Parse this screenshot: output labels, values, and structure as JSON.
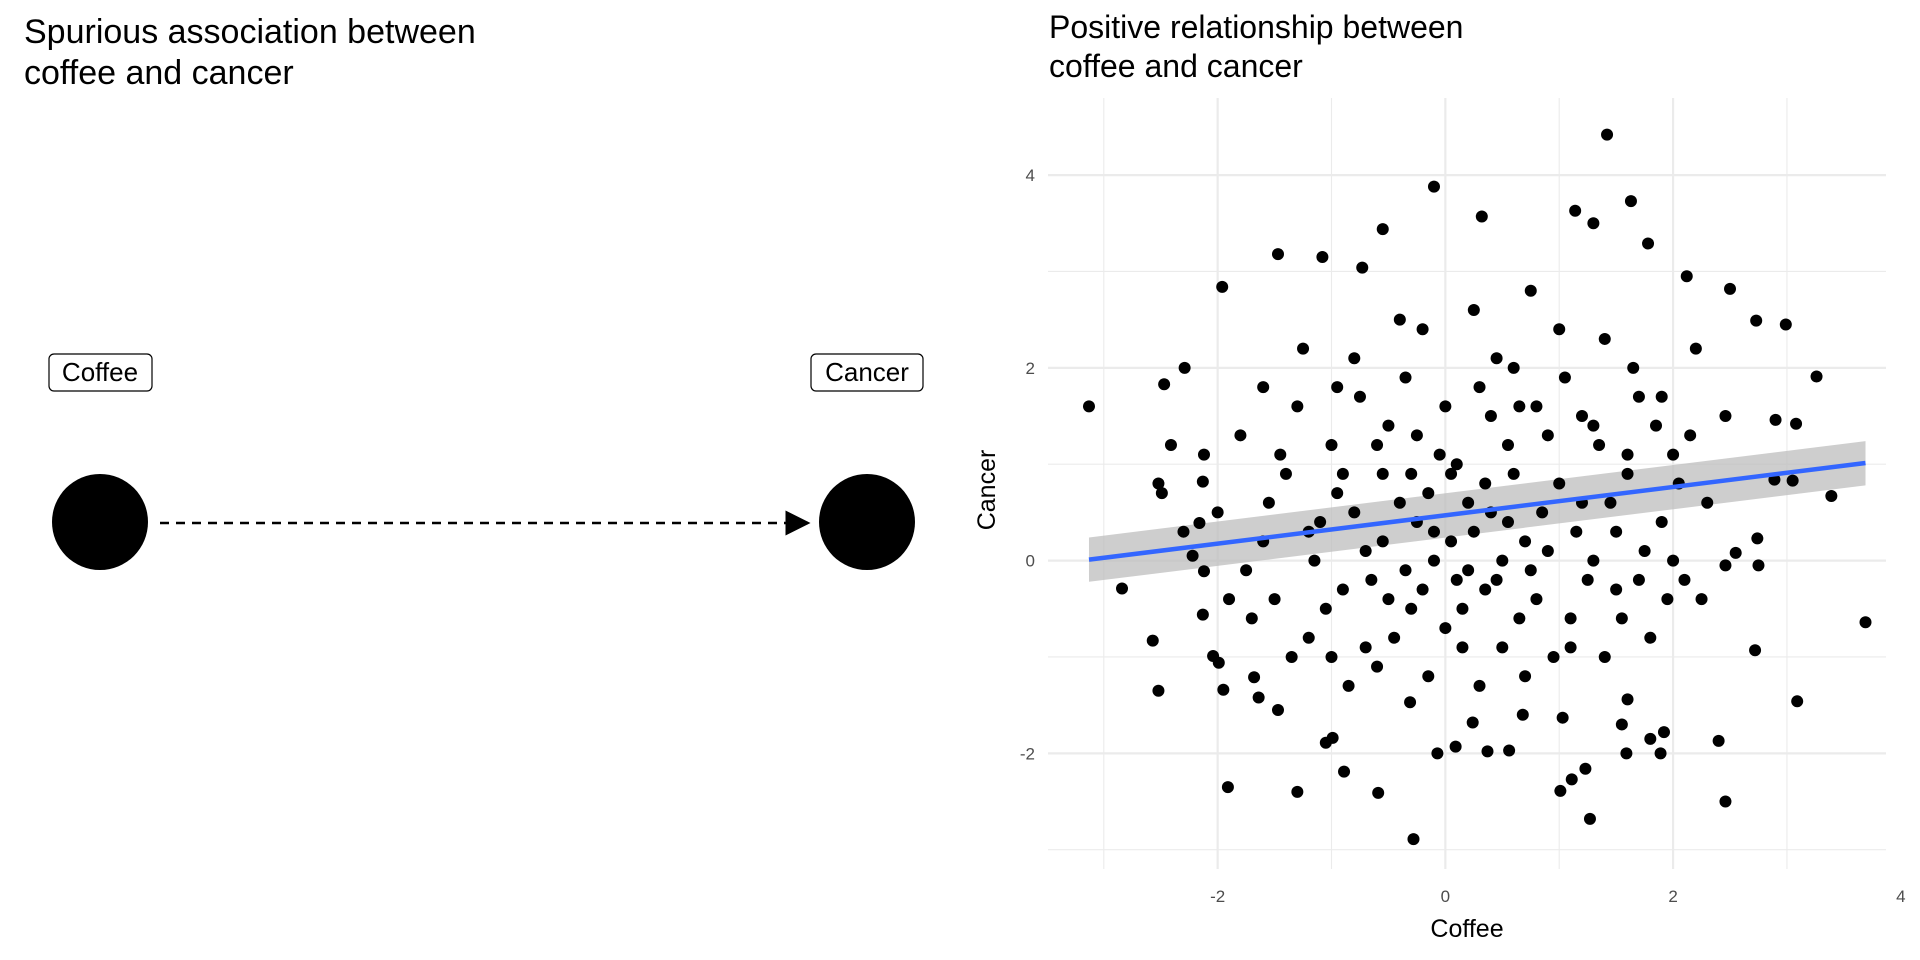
{
  "chart_data": [
    {
      "type": "diagram",
      "title_lines": [
        "Spurious association between",
        "coffee and cancer"
      ],
      "nodes": [
        {
          "label": "Coffee"
        },
        {
          "label": "Cancer"
        }
      ],
      "edges": [
        {
          "from": "Coffee",
          "to": "Cancer",
          "style": "dashed"
        }
      ]
    },
    {
      "type": "scatter",
      "title_lines": [
        "Positive relationship between",
        "coffee and cancer"
      ],
      "xlabel": "Coffee",
      "ylabel": "Cancer",
      "xlim": [
        -3.49,
        3.87
      ],
      "ylim": [
        -3.2,
        4.8
      ],
      "xticks": [
        -2,
        0,
        2,
        4
      ],
      "yticks": [
        -2,
        0,
        2,
        4
      ],
      "xtick_labels": [
        "-2",
        "0",
        "2",
        "4"
      ],
      "ytick_labels": [
        "-2",
        "0",
        "2",
        "4"
      ],
      "grid": true,
      "point_color": "#000000",
      "fit": {
        "method": "lm",
        "intercept": 0.47,
        "slope": 0.147,
        "x_range": [
          -3.13,
          3.69
        ],
        "se_low": [
          -0.22,
          0.78
        ],
        "se_high": [
          0.24,
          1.24
        ],
        "color": "#3366FF",
        "band_color": "#BEBEBE"
      },
      "points": [
        [
          -3.13,
          1.6
        ],
        [
          -2.84,
          -0.29
        ],
        [
          1.42,
          4.42
        ],
        [
          -0.1,
          3.88
        ],
        [
          -0.28,
          -2.89
        ],
        [
          3.69,
          -0.64
        ],
        [
          1.27,
          -2.68
        ],
        [
          2.46,
          -2.5
        ],
        [
          3.26,
          1.91
        ],
        [
          3.39,
          0.67
        ],
        [
          3.09,
          -1.46
        ],
        [
          1.63,
          3.73
        ],
        [
          2.99,
          2.45
        ],
        [
          -1.96,
          2.84
        ],
        [
          -1.91,
          -2.35
        ],
        [
          -2.57,
          -0.83
        ],
        [
          -2.52,
          -1.35
        ],
        [
          -2.47,
          1.83
        ],
        [
          -2.29,
          2.0
        ],
        [
          -2.41,
          1.2
        ],
        [
          -1.47,
          3.18
        ],
        [
          -1.08,
          3.15
        ],
        [
          -0.73,
          3.04
        ],
        [
          -0.55,
          3.44
        ],
        [
          0.32,
          3.57
        ],
        [
          1.14,
          3.63
        ],
        [
          1.3,
          3.5
        ],
        [
          1.78,
          3.29
        ],
        [
          2.12,
          2.95
        ],
        [
          2.5,
          2.82
        ],
        [
          2.73,
          2.49
        ],
        [
          2.72,
          -0.93
        ],
        [
          2.4,
          -1.87
        ],
        [
          -0.59,
          -2.41
        ],
        [
          -1.3,
          -2.4
        ],
        [
          -0.89,
          -2.19
        ],
        [
          -0.99,
          -1.84
        ],
        [
          -1.05,
          -1.89
        ],
        [
          1.01,
          -2.39
        ],
        [
          1.11,
          -2.27
        ],
        [
          1.23,
          -2.16
        ],
        [
          0.37,
          -1.98
        ],
        [
          -0.07,
          -2.0
        ],
        [
          0.09,
          -1.93
        ],
        [
          1.59,
          -2.0
        ],
        [
          1.89,
          -2.0
        ],
        [
          1.92,
          -1.78
        ],
        [
          1.8,
          -1.85
        ],
        [
          1.55,
          -1.7
        ],
        [
          1.6,
          -1.44
        ],
        [
          1.03,
          -1.63
        ],
        [
          0.68,
          -1.6
        ],
        [
          0.56,
          -1.97
        ],
        [
          0.24,
          -1.68
        ],
        [
          -0.31,
          -1.47
        ],
        [
          -1.47,
          -1.55
        ],
        [
          -1.64,
          -1.42
        ],
        [
          -1.68,
          -1.21
        ],
        [
          -2.04,
          -0.99
        ],
        [
          -1.99,
          -1.06
        ],
        [
          -2.13,
          -0.56
        ],
        [
          -2.12,
          -0.11
        ],
        [
          -2.16,
          0.39
        ],
        [
          -2.12,
          1.1
        ],
        [
          -2.13,
          0.82
        ],
        [
          -2.52,
          0.8
        ],
        [
          -2.49,
          0.7
        ],
        [
          -2.22,
          0.05
        ],
        [
          -1.95,
          -1.34
        ],
        [
          2.9,
          1.46
        ],
        [
          3.08,
          1.42
        ],
        [
          2.89,
          0.84
        ],
        [
          3.05,
          0.83
        ],
        [
          2.75,
          -0.05
        ],
        [
          2.74,
          0.23
        ],
        [
          2.46,
          -0.05
        ],
        [
          2.55,
          0.08
        ],
        [
          2.46,
          1.5
        ],
        [
          -1.6,
          0.2
        ],
        [
          -1.5,
          -0.4
        ],
        [
          -1.4,
          0.9
        ],
        [
          -1.3,
          1.6
        ],
        [
          -1.2,
          -0.8
        ],
        [
          -1.1,
          0.4
        ],
        [
          -1.0,
          1.2
        ],
        [
          -0.9,
          -0.3
        ],
        [
          -0.8,
          2.1
        ],
        [
          -0.7,
          0.1
        ],
        [
          -0.6,
          -1.1
        ],
        [
          -0.5,
          1.4
        ],
        [
          -0.4,
          0.6
        ],
        [
          -0.3,
          -0.5
        ],
        [
          -0.2,
          2.4
        ],
        [
          -0.1,
          0.3
        ],
        [
          0.0,
          -0.7
        ],
        [
          0.1,
          1.0
        ],
        [
          0.2,
          -0.1
        ],
        [
          0.3,
          1.8
        ],
        [
          0.4,
          0.5
        ],
        [
          0.5,
          -0.9
        ],
        [
          0.6,
          2.0
        ],
        [
          0.7,
          0.2
        ],
        [
          0.8,
          -0.4
        ],
        [
          0.9,
          1.3
        ],
        [
          1.0,
          0.8
        ],
        [
          1.1,
          -0.6
        ],
        [
          1.2,
          1.5
        ],
        [
          1.3,
          0.0
        ],
        [
          1.4,
          2.3
        ],
        [
          1.5,
          -0.3
        ],
        [
          1.6,
          0.9
        ],
        [
          1.7,
          1.7
        ],
        [
          1.8,
          -0.8
        ],
        [
          1.9,
          0.4
        ],
        [
          2.0,
          1.1
        ],
        [
          2.1,
          -0.2
        ],
        [
          2.2,
          2.2
        ],
        [
          2.3,
          0.6
        ],
        [
          -1.8,
          1.3
        ],
        [
          -1.7,
          -0.6
        ],
        [
          -1.55,
          0.6
        ],
        [
          -1.35,
          -1.0
        ],
        [
          -1.25,
          2.2
        ],
        [
          -1.15,
          0.0
        ],
        [
          -0.95,
          0.7
        ],
        [
          -0.85,
          -1.3
        ],
        [
          -0.75,
          1.7
        ],
        [
          -0.65,
          -0.2
        ],
        [
          -0.55,
          0.9
        ],
        [
          -0.45,
          -0.8
        ],
        [
          -0.35,
          1.9
        ],
        [
          -0.25,
          0.4
        ],
        [
          -0.15,
          -1.2
        ],
        [
          -0.05,
          1.1
        ],
        [
          0.05,
          0.2
        ],
        [
          0.15,
          -0.5
        ],
        [
          0.25,
          2.6
        ],
        [
          0.35,
          0.8
        ],
        [
          0.45,
          -0.2
        ],
        [
          0.55,
          1.2
        ],
        [
          0.65,
          -0.6
        ],
        [
          0.75,
          2.8
        ],
        [
          0.85,
          0.5
        ],
        [
          0.95,
          -1.0
        ],
        [
          1.05,
          1.9
        ],
        [
          1.15,
          0.3
        ],
        [
          1.25,
          -0.2
        ],
        [
          1.35,
          1.2
        ],
        [
          1.45,
          0.6
        ],
        [
          1.55,
          -0.6
        ],
        [
          1.65,
          2.0
        ],
        [
          1.75,
          0.1
        ],
        [
          1.85,
          1.4
        ],
        [
          1.95,
          -0.4
        ],
        [
          2.05,
          0.8
        ],
        [
          2.25,
          -0.4
        ],
        [
          -2.0,
          0.5
        ],
        [
          -1.9,
          -0.4
        ],
        [
          -1.45,
          1.1
        ],
        [
          -1.05,
          -0.5
        ],
        [
          -0.95,
          1.8
        ],
        [
          -0.55,
          0.2
        ],
        [
          -0.35,
          -0.1
        ],
        [
          -0.25,
          1.3
        ],
        [
          -0.15,
          0.7
        ],
        [
          0.0,
          1.6
        ],
        [
          0.1,
          -0.2
        ],
        [
          0.2,
          0.6
        ],
        [
          0.3,
          -1.3
        ],
        [
          0.4,
          1.5
        ],
        [
          0.5,
          0.0
        ],
        [
          0.6,
          0.9
        ],
        [
          0.7,
          -1.2
        ],
        [
          0.8,
          1.6
        ],
        [
          0.9,
          0.1
        ],
        [
          1.0,
          2.4
        ],
        [
          1.1,
          -0.9
        ],
        [
          1.2,
          0.6
        ],
        [
          1.3,
          1.4
        ],
        [
          1.4,
          -1.0
        ],
        [
          1.5,
          0.3
        ],
        [
          1.6,
          1.1
        ],
        [
          -0.8,
          0.5
        ],
        [
          -0.7,
          -0.9
        ],
        [
          -0.6,
          1.2
        ],
        [
          -0.5,
          -0.4
        ],
        [
          -0.4,
          2.5
        ],
        [
          -0.3,
          0.9
        ],
        [
          -0.2,
          -0.3
        ],
        [
          -0.1,
          0.0
        ],
        [
          0.05,
          0.9
        ],
        [
          0.15,
          -0.9
        ],
        [
          0.25,
          0.3
        ],
        [
          0.35,
          -0.3
        ],
        [
          0.45,
          2.1
        ],
        [
          0.55,
          0.4
        ],
        [
          0.65,
          1.6
        ],
        [
          0.75,
          -0.1
        ],
        [
          -1.2,
          0.3
        ],
        [
          -1.0,
          -1.0
        ],
        [
          -0.9,
          0.9
        ],
        [
          -1.6,
          1.8
        ],
        [
          -1.75,
          -0.1
        ],
        [
          1.7,
          -0.2
        ],
        [
          1.9,
          1.7
        ],
        [
          2.0,
          0.0
        ],
        [
          2.15,
          1.3
        ],
        [
          -2.3,
          0.3
        ]
      ]
    }
  ]
}
